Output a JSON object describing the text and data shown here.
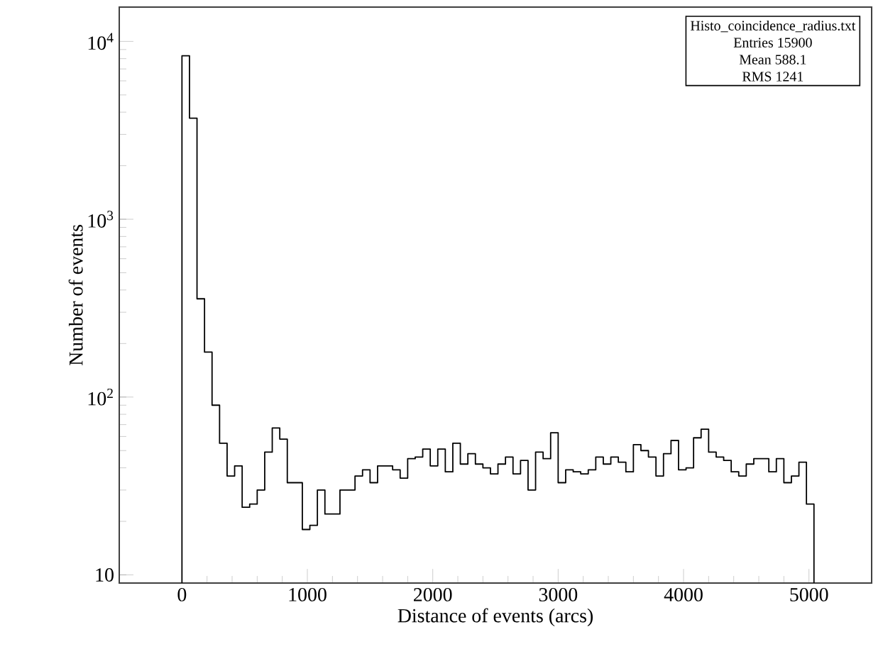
{
  "chart_data": {
    "type": "histogram",
    "xlabel": "Distance of events (arcs)",
    "ylabel": "Number of events",
    "bins": [
      0,
      60,
      120,
      180,
      240,
      300,
      360,
      420,
      480,
      540,
      600,
      660,
      720,
      780,
      840,
      900,
      960,
      1020,
      1080,
      1140,
      1200,
      1260,
      1320,
      1380,
      1440,
      1500,
      1560,
      1620,
      1680,
      1740,
      1800,
      1860,
      1920,
      1980,
      2040,
      2100,
      2160,
      2220,
      2280,
      2340,
      2400,
      2460,
      2520,
      2580,
      2640,
      2700,
      2760,
      2820,
      2880,
      2940,
      3000,
      3060,
      3120,
      3180,
      3240,
      3300,
      3360,
      3420,
      3480,
      3540,
      3600,
      3660,
      3720,
      3780,
      3840,
      3900,
      3960,
      4020,
      4080,
      4140,
      4200,
      4260,
      4320,
      4380,
      4440,
      4500,
      4560,
      4620,
      4680,
      4740,
      4800,
      4860,
      4920,
      4980,
      5040
    ],
    "values": [
      8300,
      3700,
      357,
      179,
      90,
      55,
      36,
      41,
      24,
      25,
      30,
      49,
      67,
      58,
      33,
      33,
      18,
      19,
      30,
      22,
      22,
      30,
      30,
      36,
      39,
      33,
      41,
      41,
      39,
      35,
      45,
      46,
      51,
      41,
      51,
      38,
      55,
      42,
      48,
      42,
      40,
      37,
      42,
      46,
      37,
      44,
      30,
      49,
      45,
      63,
      33,
      39,
      38,
      37,
      39,
      46,
      42,
      46,
      43,
      38,
      54,
      50,
      46,
      36,
      48,
      57,
      39,
      40,
      59,
      66,
      49,
      46,
      44,
      38,
      36,
      42,
      45,
      45,
      38,
      45,
      33,
      36,
      43,
      25
    ],
    "color": "#000000",
    "log": "y",
    "xlim": [
      -500,
      5500
    ],
    "ylim": [
      9,
      15600
    ],
    "xticks": [
      0,
      1000,
      2000,
      3000,
      4000,
      5000
    ],
    "yticks": [
      10,
      {
        "value": 100,
        "label": "10$^{2}$"
      },
      {
        "value": 1000,
        "label": "10$^{3}$"
      },
      {
        "value": 10000,
        "label": "10$^{4}$"
      }
    ],
    "annotations": [
      "Histo_coincidence_radius.txt",
      "Entries 15900",
      "Mean 588.1",
      "RMS 1241"
    ]
  }
}
